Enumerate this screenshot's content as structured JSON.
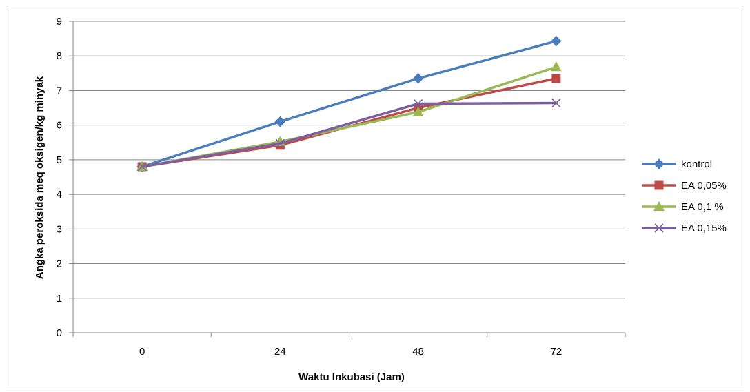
{
  "chart_data": {
    "type": "line",
    "title": "",
    "xlabel": "Waktu Inkubasi (Jam)",
    "ylabel": "Angka peroksida meq oksigen/kg  minyak",
    "categories": [
      "0",
      "24",
      "48",
      "72"
    ],
    "ylim": [
      0,
      9
    ],
    "yticks": [
      0,
      1,
      2,
      3,
      4,
      5,
      6,
      7,
      8,
      9
    ],
    "grid": true,
    "legend_position": "right",
    "series": [
      {
        "name": "kontrol",
        "values": [
          4.8,
          6.1,
          7.35,
          8.43
        ],
        "color": "#4a7ebb",
        "marker": "diamond"
      },
      {
        "name": "EA 0,05%",
        "values": [
          4.8,
          5.42,
          6.5,
          7.35
        ],
        "color": "#be4b48",
        "marker": "square"
      },
      {
        "name": "EA 0,1 %",
        "values": [
          4.8,
          5.52,
          6.38,
          7.68
        ],
        "color": "#98b954",
        "marker": "triangle"
      },
      {
        "name": "EA 0,15%",
        "values": [
          4.8,
          5.47,
          6.62,
          6.64
        ],
        "color": "#7d5fa0",
        "marker": "x"
      }
    ]
  }
}
